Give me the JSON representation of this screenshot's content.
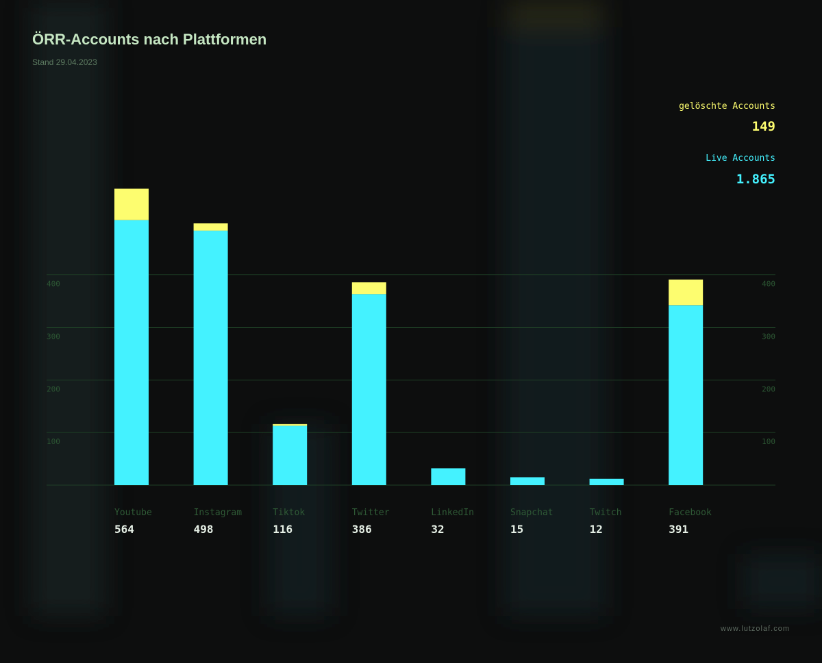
{
  "chart_data": {
    "type": "stacked_bar",
    "title": "ÖRR-Accounts nach Plattformen",
    "subtitle": "Stand 29.04.2023",
    "categories": [
      "Youtube",
      "Instagram",
      "Tiktok",
      "Twitter",
      "LinkedIn",
      "Snapchat",
      "Twitch",
      "Facebook"
    ],
    "totals": [
      564,
      498,
      116,
      386,
      32,
      15,
      12,
      391
    ],
    "series": [
      {
        "name": "Live Accounts",
        "color": "#44f2ff",
        "values": [
          504,
          484,
          113,
          363,
          32,
          15,
          12,
          342
        ],
        "total": 1865,
        "total_label": "1.865"
      },
      {
        "name": "gelöschte Accounts",
        "color": "#fdfd6f",
        "values": [
          60,
          14,
          3,
          23,
          0,
          0,
          0,
          49
        ],
        "total": 149
      }
    ],
    "ylim": [
      0,
      600
    ],
    "yticks": [
      100,
      200,
      300,
      400
    ],
    "grid": true,
    "footer": "www.lutzolaf.com"
  }
}
